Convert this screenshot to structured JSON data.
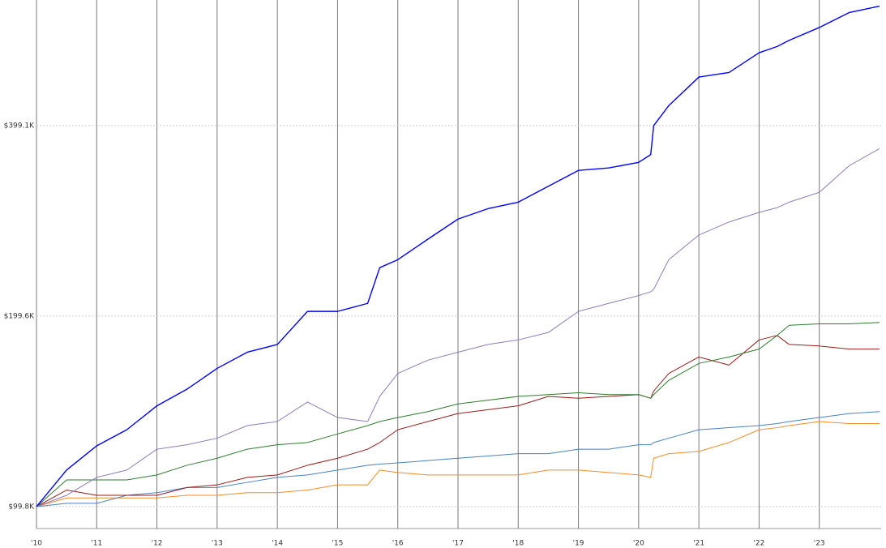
{
  "chart_data": {
    "type": "line",
    "log_y": true,
    "x_grid": true,
    "y_grid": true,
    "x": [
      10,
      10.5,
      11,
      11.5,
      12,
      12.5,
      13,
      13.5,
      14,
      14.5,
      15,
      15.5,
      15.7,
      16,
      16.5,
      17,
      17.5,
      18,
      18.5,
      19,
      19.5,
      20,
      20.2,
      20.25,
      20.5,
      21,
      21.5,
      22,
      22.3,
      22.5,
      23,
      23.5,
      24
    ],
    "xlim": [
      10,
      24
    ],
    "xticks": [
      {
        "value": 10,
        "label": "'10"
      },
      {
        "value": 11,
        "label": "'11"
      },
      {
        "value": 12,
        "label": "'12"
      },
      {
        "value": 13,
        "label": "'13"
      },
      {
        "value": 14,
        "label": "'14"
      },
      {
        "value": 15,
        "label": "'15"
      },
      {
        "value": 16,
        "label": "'16"
      },
      {
        "value": 17,
        "label": "'17"
      },
      {
        "value": 18,
        "label": "'18"
      },
      {
        "value": 19,
        "label": "'19"
      },
      {
        "value": 20,
        "label": "'20"
      },
      {
        "value": 21,
        "label": "'21"
      },
      {
        "value": 22,
        "label": "'22"
      },
      {
        "value": 23,
        "label": "'23"
      }
    ],
    "ylim": [
      92700,
      630000
    ],
    "yticks": [
      {
        "value": 99800,
        "label": "$99.8K"
      },
      {
        "value": 199600,
        "label": "$199.6K"
      },
      {
        "value": 399100,
        "label": "$399.1K"
      }
    ],
    "series": [
      {
        "color": "#0000ff",
        "width": 1.4,
        "values": [
          99800,
          114000,
          124500,
          132000,
          144000,
          153000,
          165000,
          175000,
          180000,
          203000,
          203000,
          209000,
          238000,
          245000,
          264000,
          284000,
          295000,
          302000,
          320000,
          339000,
          342000,
          349000,
          359000,
          399000,
          429000,
          476000,
          484000,
          520000,
          532000,
          544000,
          570000,
          602000,
          616000
        ]
      },
      {
        "color": "#8c7dba",
        "width": 1,
        "values": [
          99800,
          104000,
          111000,
          114000,
          123000,
          125000,
          128000,
          134000,
          136000,
          146000,
          138000,
          136000,
          149000,
          162000,
          170000,
          175000,
          180000,
          183000,
          188000,
          203000,
          209000,
          215000,
          218000,
          220000,
          245000,
          268000,
          281000,
          291000,
          296000,
          302000,
          313000,
          345000,
          367000
        ]
      },
      {
        "color": "#2e7d2e",
        "width": 1,
        "values": [
          99800,
          110000,
          110000,
          110000,
          112000,
          116000,
          119000,
          123000,
          125000,
          126000,
          130000,
          134000,
          136000,
          138000,
          141000,
          145000,
          147000,
          149000,
          150000,
          151000,
          150000,
          150000,
          148000,
          150000,
          158000,
          168000,
          172000,
          177000,
          186000,
          193000,
          194000,
          194000,
          195000
        ]
      },
      {
        "color": "#9b1b1b",
        "width": 1,
        "values": [
          99800,
          106000,
          104000,
          104000,
          104000,
          107000,
          108000,
          111000,
          112000,
          116000,
          119000,
          123000,
          126000,
          132000,
          136000,
          140000,
          142000,
          144000,
          149000,
          148000,
          149000,
          150000,
          148000,
          152000,
          162000,
          172000,
          167000,
          183000,
          186000,
          180000,
          179000,
          177000,
          177000
        ]
      },
      {
        "color": "#4682c4",
        "width": 1,
        "values": [
          99800,
          101000,
          101000,
          104000,
          105000,
          107000,
          107000,
          109000,
          111000,
          112000,
          114000,
          116000,
          116500,
          117000,
          118000,
          119000,
          120000,
          121000,
          121000,
          123000,
          123000,
          125000,
          125000,
          126000,
          128000,
          132000,
          133000,
          134000,
          135000,
          136000,
          138000,
          140000,
          141000
        ]
      },
      {
        "color": "#f28c28",
        "width": 1,
        "values": [
          99800,
          103000,
          103000,
          103000,
          103000,
          104000,
          104000,
          105000,
          105000,
          106000,
          108000,
          108000,
          114000,
          113000,
          112000,
          112000,
          112000,
          112000,
          114000,
          114000,
          113000,
          112000,
          111000,
          119000,
          121000,
          122000,
          126000,
          132000,
          133000,
          134000,
          136000,
          135000,
          135000
        ]
      }
    ]
  }
}
